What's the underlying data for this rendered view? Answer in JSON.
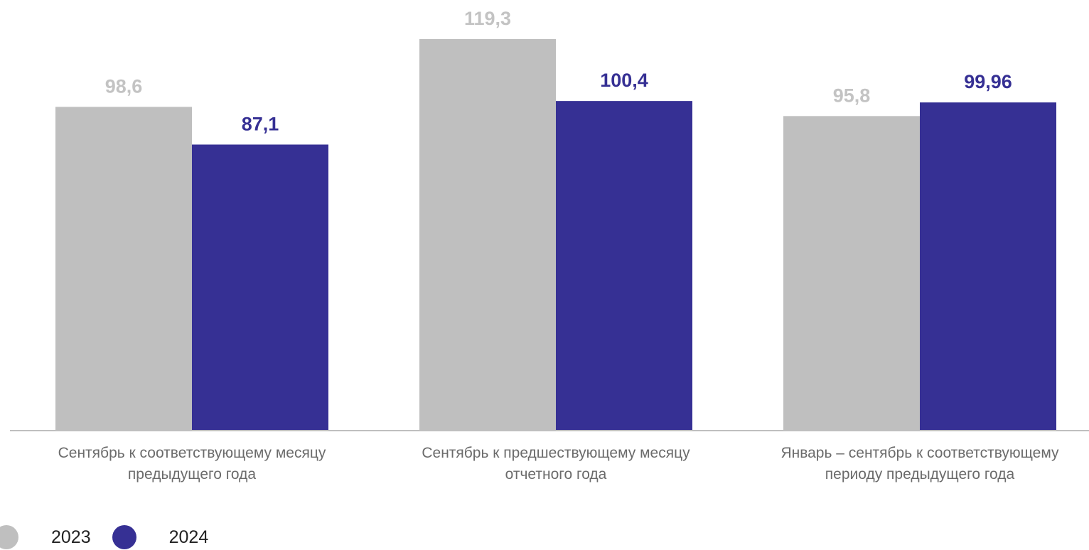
{
  "chart_data": {
    "type": "bar",
    "categories": [
      [
        "Сентябрь к соответствующему месяцу",
        "предыдущего года"
      ],
      [
        "Сентябрь к предшествующему месяцу",
        "отчетного года"
      ],
      [
        "Январь – сентябрь к соответствующему",
        "периоду предыдущего года"
      ]
    ],
    "series": [
      {
        "name": "2023",
        "color": "#bfbfbf",
        "values": [
          98.6,
          119.3,
          95.8
        ],
        "labels": [
          "98,6",
          "119,3",
          "95,8"
        ]
      },
      {
        "name": "2024",
        "color": "#363094",
        "values": [
          87.1,
          100.4,
          99.96
        ],
        "labels": [
          "87,1",
          "100,4",
          "99,96"
        ]
      }
    ],
    "ylim": [
      0,
      119.3
    ],
    "grid": false,
    "legend_position": "bottom-left"
  }
}
